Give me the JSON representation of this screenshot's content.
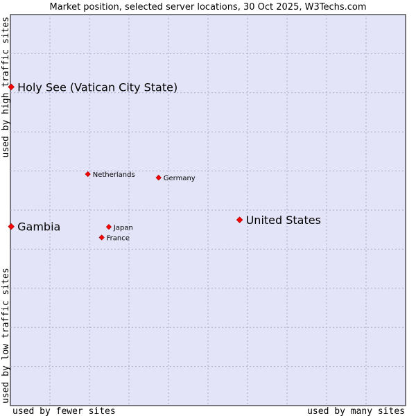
{
  "chart_data": {
    "type": "scatter",
    "title": "Market position, selected server locations, 30 Oct 2025, W3Techs.com",
    "xlabel_left": "used by fewer sites",
    "xlabel_right": "used by many sites",
    "ylabel_bottom": "used by low traffic sites",
    "ylabel_top": "used by high traffic sites",
    "xlim": [
      0,
      100
    ],
    "ylim": [
      0,
      100
    ],
    "grid": true,
    "colors": {
      "plot_background": "#e4e4f8",
      "grid": "#aaaacc",
      "point": "#ff0000",
      "point_stroke": "#aa0000"
    },
    "points": [
      {
        "name": "Holy See (Vatican City State)",
        "x": 0.2,
        "y": 81.5,
        "size": "large"
      },
      {
        "name": "Netherlands",
        "x": 19.6,
        "y": 59.2,
        "size": "small"
      },
      {
        "name": "Germany",
        "x": 37.5,
        "y": 58.3,
        "size": "small"
      },
      {
        "name": "United States",
        "x": 58.0,
        "y": 47.5,
        "size": "large"
      },
      {
        "name": "Gambia",
        "x": 0.2,
        "y": 45.8,
        "size": "large"
      },
      {
        "name": "Japan",
        "x": 24.9,
        "y": 45.7,
        "size": "small"
      },
      {
        "name": "France",
        "x": 23.1,
        "y": 43.0,
        "size": "small"
      }
    ]
  }
}
